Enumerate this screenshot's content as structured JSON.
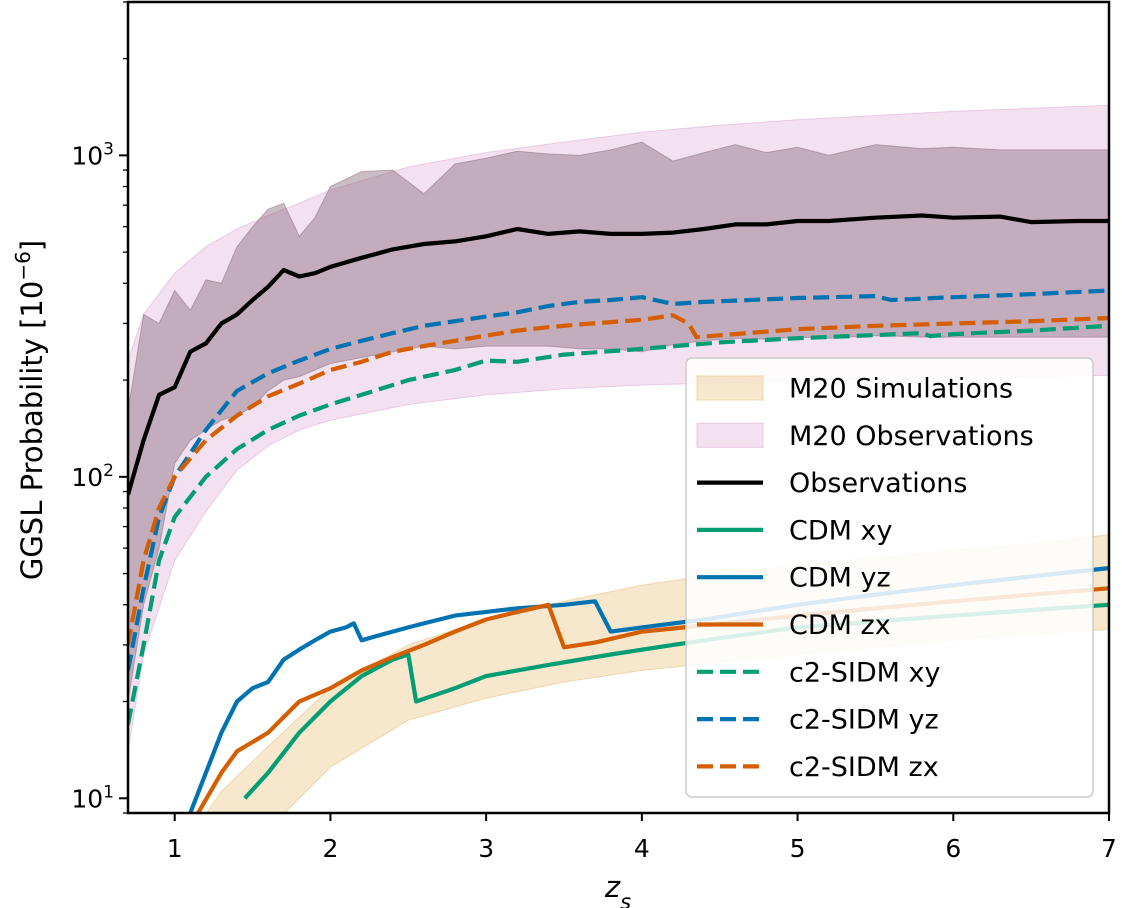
{
  "chart_data": {
    "type": "line",
    "xlabel": "z_s",
    "ylabel": "GGSL Probability [10^{-6}]",
    "xscale": "linear",
    "yscale": "log",
    "xlim": [
      0.7,
      7
    ],
    "ylim": [
      9,
      3000
    ],
    "xticks": [
      {
        "value": 1,
        "label": "1"
      },
      {
        "value": 2,
        "label": "2"
      },
      {
        "value": 3,
        "label": "3"
      },
      {
        "value": 4,
        "label": "4"
      },
      {
        "value": 5,
        "label": "5"
      },
      {
        "value": 6,
        "label": "6"
      },
      {
        "value": 7,
        "label": "7"
      }
    ],
    "yticks": [
      {
        "value": 10,
        "base": "10",
        "exp": "1"
      },
      {
        "value": 100,
        "base": "10",
        "exp": "2"
      },
      {
        "value": 1000,
        "base": "10",
        "exp": "3"
      }
    ],
    "grid": false,
    "legend_position": "lower-right",
    "bands": [
      {
        "name": "M20 Simulations",
        "color": "#f0d7ac",
        "opacity": 0.6,
        "x": [
          1.1,
          1.3,
          1.6,
          2.0,
          2.5,
          3.0,
          3.5,
          4.0,
          4.5,
          5.0,
          5.5,
          6.0,
          6.5,
          7.0
        ],
        "upper": [
          7.6,
          10.5,
          14.5,
          22.0,
          30.0,
          36.0,
          41.0,
          46.0,
          50.0,
          53.0,
          56.0,
          59.0,
          62.0,
          66.0
        ],
        "lower": [
          4.0,
          6.0,
          8.0,
          12.5,
          17.5,
          20.5,
          23.0,
          25.0,
          26.5,
          28.0,
          29.5,
          31.0,
          32.5,
          33.5
        ]
      },
      {
        "name": "M20 Observations",
        "color": "#e9c9e4",
        "opacity": 0.55,
        "x": [
          0.7,
          0.8,
          1.0,
          1.2,
          1.4,
          1.6,
          1.8,
          2.0,
          2.5,
          3.0,
          3.5,
          4.0,
          4.5,
          5.0,
          5.5,
          6.0,
          6.5,
          7.0
        ],
        "upper": [
          230,
          320,
          430,
          520,
          590,
          650,
          710,
          780,
          920,
          1020,
          1100,
          1180,
          1240,
          1290,
          1330,
          1370,
          1400,
          1430
        ],
        "lower": [
          14,
          28,
          55,
          78,
          105,
          125,
          140,
          150,
          168,
          180,
          188,
          193,
          196,
          199,
          201,
          203,
          205,
          207
        ]
      }
    ],
    "series": [
      {
        "name": "Observations",
        "color": "#000000",
        "style": "solid",
        "x": [
          0.7,
          0.8,
          0.9,
          1.0,
          1.1,
          1.2,
          1.3,
          1.4,
          1.5,
          1.6,
          1.7,
          1.8,
          1.9,
          2.0,
          2.2,
          2.4,
          2.6,
          2.8,
          3.0,
          3.2,
          3.4,
          3.6,
          3.8,
          4.0,
          4.2,
          4.4,
          4.6,
          4.8,
          5.0,
          5.2,
          5.5,
          5.8,
          6.0,
          6.3,
          6.5,
          6.8,
          7.0
        ],
        "y": [
          88,
          130,
          180,
          190,
          245,
          260,
          300,
          320,
          355,
          390,
          440,
          420,
          430,
          450,
          480,
          510,
          530,
          540,
          560,
          590,
          570,
          580,
          570,
          570,
          575,
          590,
          610,
          610,
          625,
          625,
          640,
          650,
          640,
          645,
          620,
          625,
          625
        ],
        "upper": [
          160,
          320,
          300,
          380,
          330,
          410,
          400,
          520,
          600,
          680,
          710,
          560,
          640,
          800,
          890,
          900,
          760,
          940,
          980,
          1030,
          1010,
          1000,
          1040,
          1100,
          960,
          1020,
          1080,
          1020,
          1060,
          1000,
          1080,
          1050,
          1060,
          1040,
          1040,
          1040,
          1040
        ],
        "lower": [
          20,
          40,
          60,
          110,
          130,
          140,
          150,
          155,
          165,
          185,
          200,
          205,
          215,
          225,
          235,
          245,
          255,
          250,
          255,
          255,
          255,
          250,
          250,
          245,
          258,
          265,
          270,
          268,
          272,
          270,
          275,
          272,
          272,
          272,
          272,
          272,
          272
        ]
      },
      {
        "name": "CDM xy",
        "color": "#029e73",
        "style": "solid",
        "x": [
          1.45,
          1.6,
          1.8,
          2.0,
          2.2,
          2.4,
          2.5,
          2.55,
          2.8,
          3.0,
          3.4,
          3.8,
          4.2,
          4.6,
          5.0,
          5.5,
          6.0,
          6.5,
          7.0
        ],
        "y": [
          10,
          12,
          16,
          20,
          24,
          27,
          28,
          20,
          22,
          24,
          26,
          28,
          30,
          32,
          34,
          35.5,
          37,
          38.5,
          40
        ]
      },
      {
        "name": "CDM yz",
        "color": "#0173b2",
        "style": "solid",
        "x": [
          1.1,
          1.2,
          1.3,
          1.4,
          1.5,
          1.6,
          1.7,
          1.8,
          1.9,
          2.0,
          2.1,
          2.15,
          2.2,
          2.3,
          2.4,
          2.5,
          2.6,
          2.7,
          2.8,
          3.0,
          3.2,
          3.5,
          3.7,
          3.8,
          4.0,
          4.4,
          5.0,
          5.5,
          6.0,
          6.5,
          7.0
        ],
        "y": [
          9,
          12,
          16,
          20,
          22,
          23,
          27,
          29,
          31,
          33,
          34,
          35,
          31,
          32,
          33,
          34,
          35,
          36,
          37,
          38,
          39,
          40,
          41,
          33,
          34,
          36,
          40,
          43,
          46,
          49,
          52
        ]
      },
      {
        "name": "CDM zx",
        "color": "#d55e00",
        "style": "solid",
        "x": [
          1.15,
          1.3,
          1.4,
          1.6,
          1.8,
          2.0,
          2.2,
          2.4,
          2.6,
          2.8,
          3.0,
          3.2,
          3.4,
          3.5,
          3.7,
          4.0,
          4.4,
          5.0,
          5.5,
          6.0,
          6.5,
          7.0
        ],
        "y": [
          9,
          12,
          14,
          16,
          20,
          22,
          25,
          27.5,
          30,
          33,
          36,
          38,
          40,
          29.5,
          30.5,
          33,
          34.5,
          37,
          39,
          41,
          43,
          45
        ]
      },
      {
        "name": "c2-SIDM xy",
        "color": "#029e73",
        "style": "dashed",
        "x": [
          0.7,
          0.8,
          0.9,
          1.0,
          1.2,
          1.4,
          1.6,
          1.8,
          2.0,
          2.2,
          2.5,
          2.8,
          3.0,
          3.2,
          3.5,
          4.0,
          4.5,
          5.0,
          5.5,
          5.8,
          5.85,
          6.0,
          6.5,
          7.0
        ],
        "y": [
          17,
          30,
          55,
          75,
          100,
          122,
          140,
          155,
          168,
          180,
          200,
          215,
          230,
          228,
          240,
          250,
          262,
          270,
          276,
          280,
          274,
          278,
          285,
          295
        ]
      },
      {
        "name": "c2-SIDM yz",
        "color": "#0173b2",
        "style": "dashed",
        "x": [
          0.7,
          0.8,
          0.9,
          1.0,
          1.2,
          1.4,
          1.6,
          1.8,
          2.0,
          2.2,
          2.4,
          2.6,
          2.8,
          3.0,
          3.2,
          3.4,
          3.6,
          3.8,
          4.0,
          4.2,
          4.4,
          5.0,
          5.5,
          5.6,
          6.0,
          6.5,
          7.0
        ],
        "y": [
          25,
          45,
          75,
          100,
          140,
          185,
          210,
          230,
          250,
          265,
          280,
          295,
          305,
          315,
          325,
          340,
          350,
          355,
          362,
          345,
          350,
          360,
          365,
          355,
          362,
          370,
          380
        ]
      },
      {
        "name": "c2-SIDM zx",
        "color": "#d55e00",
        "style": "dashed",
        "x": [
          0.7,
          0.8,
          0.9,
          1.0,
          1.2,
          1.4,
          1.6,
          1.8,
          2.0,
          2.2,
          2.4,
          2.6,
          2.8,
          3.0,
          3.2,
          3.4,
          3.6,
          3.8,
          4.0,
          4.2,
          4.3,
          4.35,
          5.0,
          5.5,
          6.0,
          6.5,
          7.0
        ],
        "y": [
          30,
          55,
          80,
          100,
          130,
          155,
          178,
          195,
          215,
          228,
          245,
          255,
          265,
          275,
          285,
          292,
          298,
          303,
          308,
          318,
          300,
          272,
          288,
          295,
          300,
          305,
          312
        ]
      }
    ],
    "legend": [
      {
        "label": "M20 Simulations",
        "kind": "patch",
        "ref": "M20 Simulations"
      },
      {
        "label": "M20 Observations",
        "kind": "patch",
        "ref": "M20 Observations"
      },
      {
        "label": "Observations",
        "kind": "line",
        "ref": "Observations"
      },
      {
        "label": "CDM xy",
        "kind": "line",
        "ref": "CDM xy"
      },
      {
        "label": "CDM yz",
        "kind": "line",
        "ref": "CDM yz"
      },
      {
        "label": "CDM zx",
        "kind": "line",
        "ref": "CDM zx"
      },
      {
        "label": "c2-SIDM xy",
        "kind": "line",
        "ref": "c2-SIDM xy"
      },
      {
        "label": "c2-SIDM yz",
        "kind": "line",
        "ref": "c2-SIDM yz"
      },
      {
        "label": "c2-SIDM zx",
        "kind": "line",
        "ref": "c2-SIDM zx"
      }
    ]
  }
}
